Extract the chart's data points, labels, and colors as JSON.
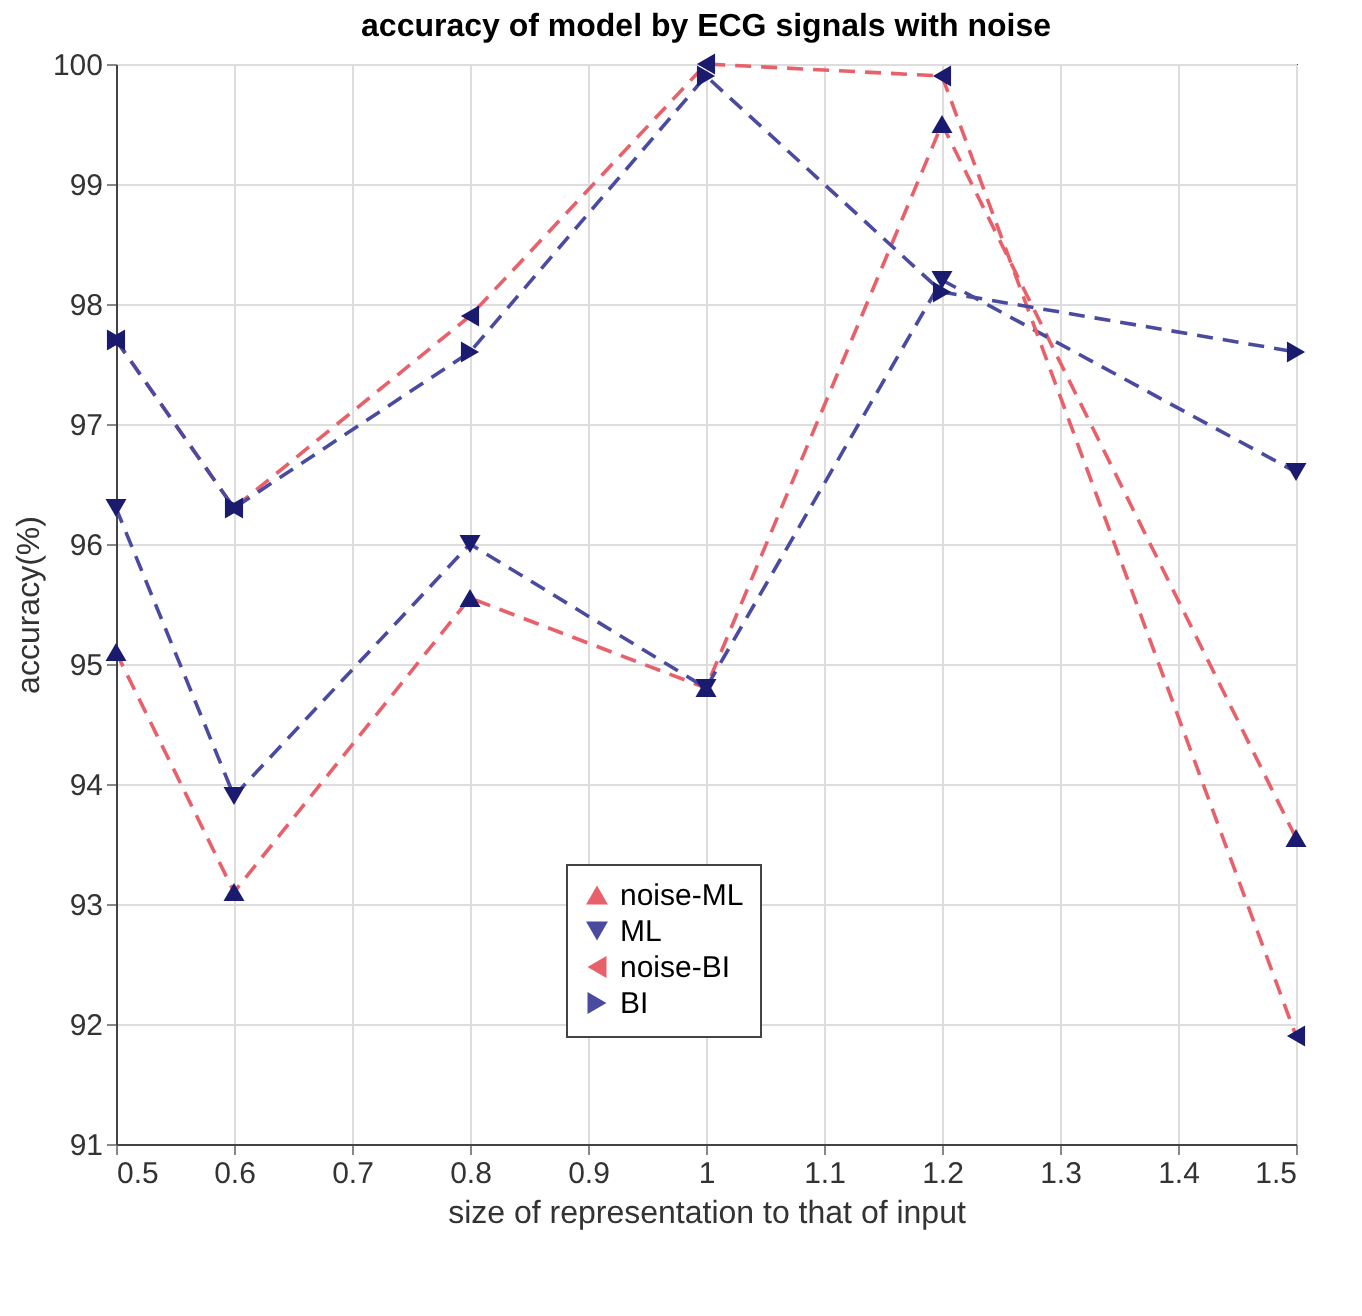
{
  "chart_data": {
    "type": "line",
    "title": "accuracy of model by ECG signals with noise",
    "xlabel": "size of representation to that of input",
    "ylabel": "accuracy(%)",
    "x": [
      0.5,
      0.6,
      0.8,
      1,
      1.2,
      1.5
    ],
    "series": [
      {
        "name": "noise-ML",
        "color": "#e8606a",
        "marker": "triangle-up",
        "values": [
          95.1,
          93.1,
          95.55,
          94.8,
          99.5,
          93.55
        ]
      },
      {
        "name": "ML",
        "color": "#4a4aa0",
        "marker": "triangle-down",
        "values": [
          96.3,
          93.9,
          96.0,
          94.8,
          98.2,
          96.6
        ]
      },
      {
        "name": "noise-BI",
        "color": "#e8606a",
        "marker": "triangle-left",
        "values": [
          97.7,
          96.3,
          97.9,
          100,
          99.9,
          91.9
        ]
      },
      {
        "name": "BI",
        "color": "#4a4aa0",
        "marker": "triangle-right",
        "values": [
          97.7,
          96.3,
          97.6,
          99.9,
          98.1,
          97.6
        ]
      }
    ],
    "xlim": [
      0.5,
      1.5
    ],
    "xticks": [
      0.5,
      0.6,
      0.7,
      0.8,
      0.9,
      1,
      1.1,
      1.2,
      1.3,
      1.4,
      1.5
    ],
    "ylim": [
      91,
      100
    ],
    "yticks": [
      91,
      92,
      93,
      94,
      95,
      96,
      97,
      98,
      99,
      100
    ],
    "grid": true,
    "legend": "bottom",
    "line_style": "dashed"
  }
}
